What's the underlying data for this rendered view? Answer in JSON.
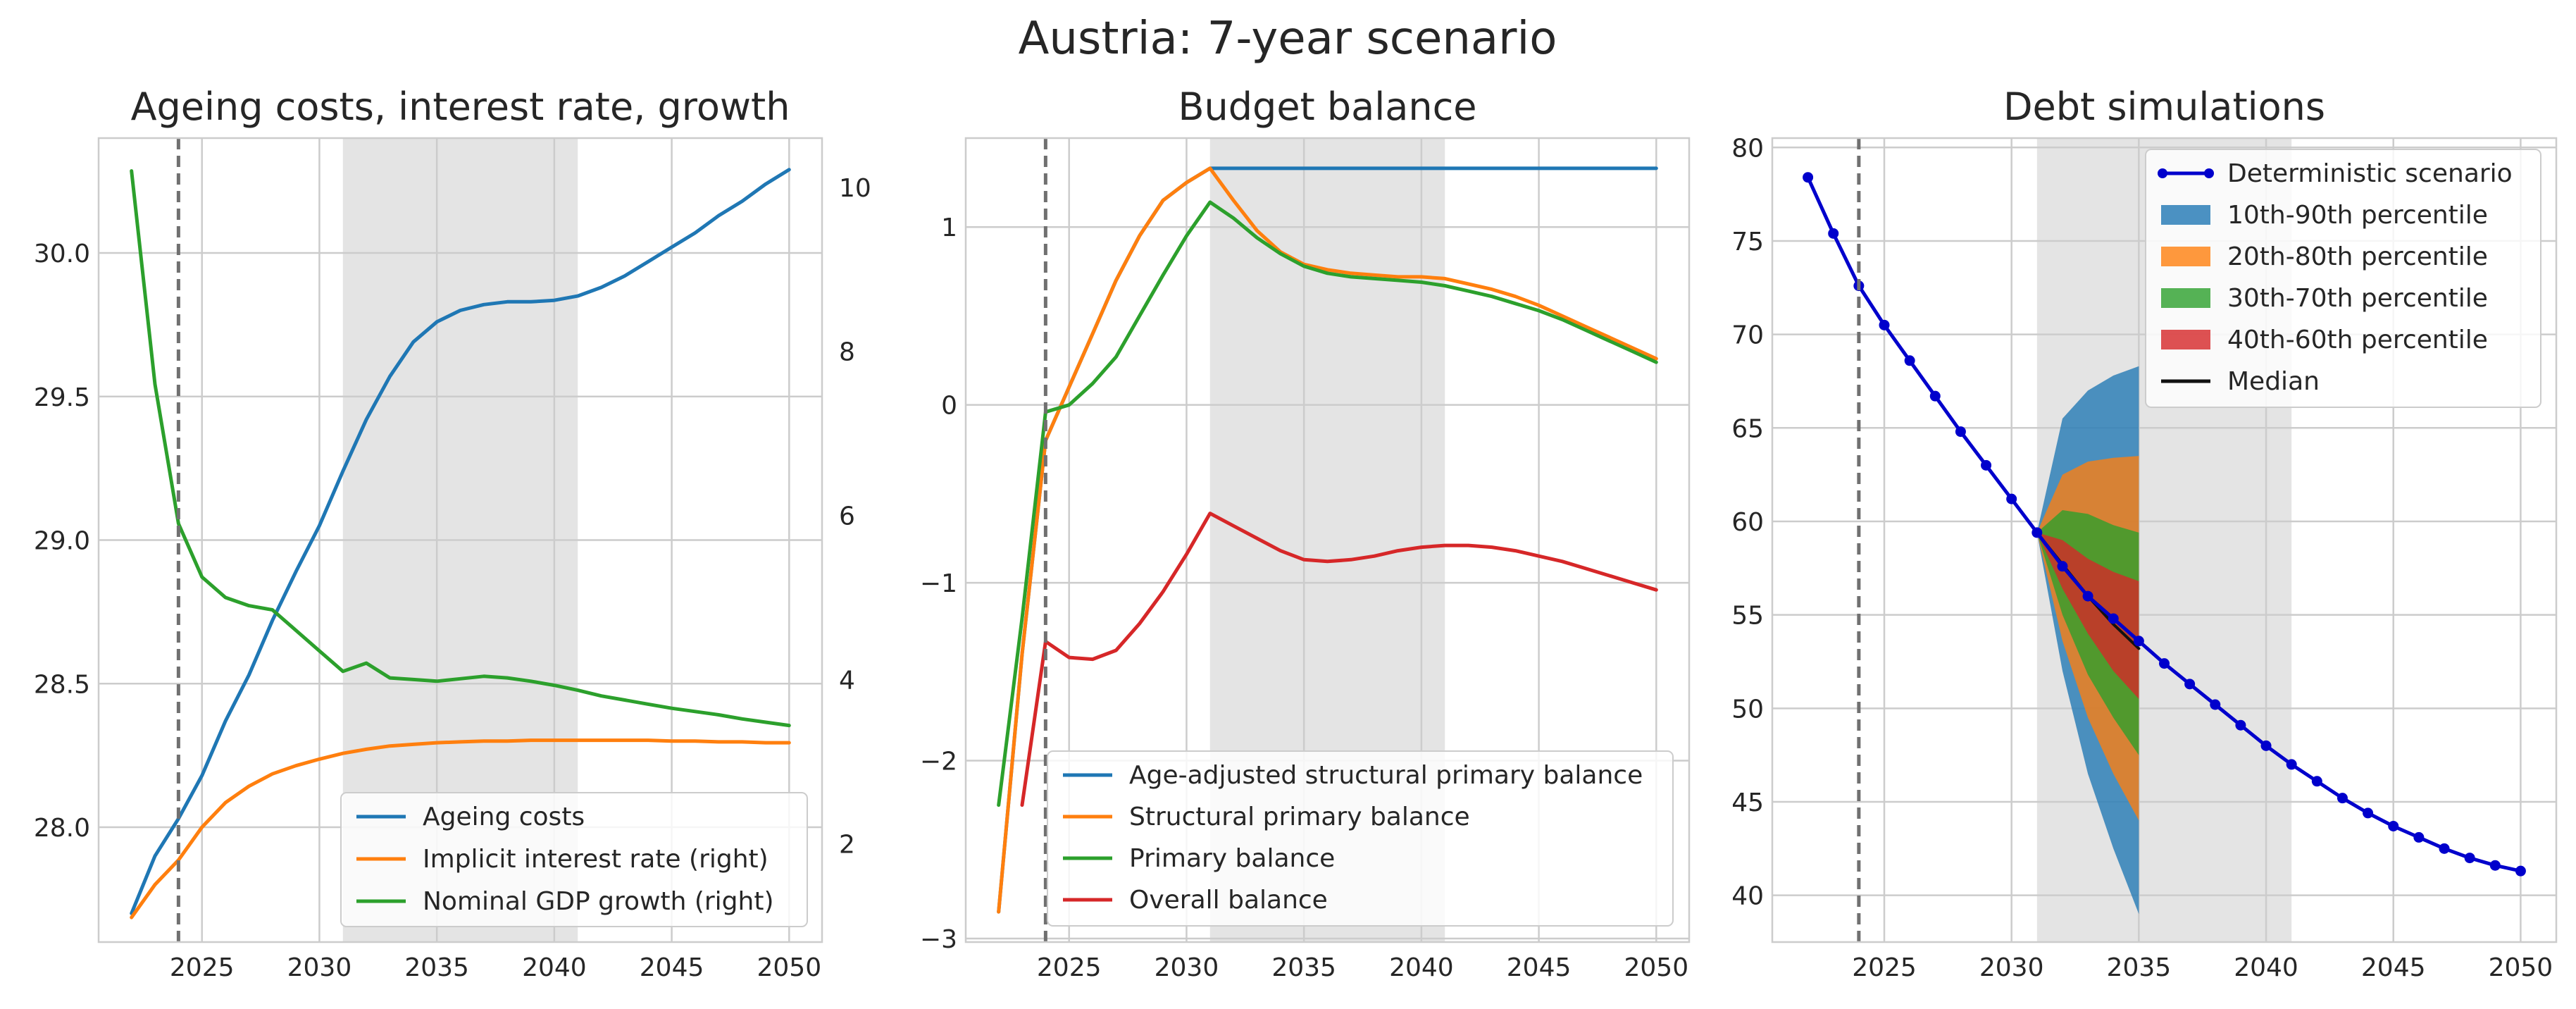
{
  "suptitle": "Austria: 7-year scenario",
  "colors": {
    "blue": "#1f77b4",
    "orange": "#ff7f0e",
    "green": "#2ca02c",
    "red": "#d62728",
    "grid": "#cccccc",
    "shade": "#e4e4e4",
    "vline": "#707070",
    "frame": "#cccccc",
    "deterministic": "#0000cc",
    "median": "#111111"
  },
  "chart_data": [
    {
      "type": "line",
      "title": "Ageing costs, interest rate, growth",
      "xlabel": "",
      "ylabel": "",
      "xlim": [
        2020.6,
        2051.4
      ],
      "ylim": [
        27.6,
        30.4
      ],
      "y2lim": [
        0.8,
        10.6
      ],
      "xticks": [
        2025,
        2030,
        2035,
        2040,
        2045,
        2050
      ],
      "yticks": [
        28.0,
        28.5,
        29.0,
        29.5,
        30.0
      ],
      "ytick_labels": [
        "28.0",
        "28.5",
        "29.0",
        "29.5",
        "30.0"
      ],
      "y2ticks": [
        2,
        4,
        6,
        8,
        10
      ],
      "y2tick_labels": [
        "2",
        "4",
        "6",
        "8",
        "10"
      ],
      "shaded_range": [
        2031,
        2041
      ],
      "vline": 2024,
      "legend_position": "lower right",
      "grid": true,
      "x": [
        2022,
        2023,
        2024,
        2025,
        2026,
        2027,
        2028,
        2029,
        2030,
        2031,
        2032,
        2033,
        2034,
        2035,
        2036,
        2037,
        2038,
        2039,
        2040,
        2041,
        2042,
        2043,
        2044,
        2045,
        2046,
        2047,
        2048,
        2049,
        2050
      ],
      "series": [
        {
          "name": "Ageing costs",
          "axis": "left",
          "color": "blue",
          "values": [
            27.7,
            27.9,
            28.03,
            28.18,
            28.37,
            28.53,
            28.72,
            28.89,
            29.05,
            29.24,
            29.42,
            29.57,
            29.69,
            29.76,
            29.8,
            29.82,
            29.83,
            29.83,
            29.835,
            29.85,
            29.88,
            29.92,
            29.97,
            30.02,
            30.07,
            30.13,
            30.18,
            30.24,
            30.29
          ]
        },
        {
          "name": "Implicit interest rate (right)",
          "axis": "right",
          "color": "orange",
          "values": [
            1.1,
            1.5,
            1.8,
            2.2,
            2.5,
            2.7,
            2.85,
            2.95,
            3.03,
            3.1,
            3.15,
            3.19,
            3.21,
            3.23,
            3.24,
            3.25,
            3.25,
            3.26,
            3.26,
            3.26,
            3.26,
            3.26,
            3.26,
            3.25,
            3.25,
            3.24,
            3.24,
            3.23,
            3.23
          ]
        },
        {
          "name": "Nominal GDP growth (right)",
          "axis": "right",
          "color": "green",
          "values": [
            10.2,
            7.6,
            5.9,
            5.25,
            5.0,
            4.9,
            4.85,
            4.6,
            4.35,
            4.1,
            4.2,
            4.02,
            4.0,
            3.98,
            4.01,
            4.04,
            4.02,
            3.98,
            3.93,
            3.87,
            3.8,
            3.75,
            3.7,
            3.65,
            3.61,
            3.57,
            3.52,
            3.48,
            3.44
          ]
        }
      ]
    },
    {
      "type": "line",
      "title": "Budget balance",
      "xlabel": "",
      "ylabel": "",
      "xlim": [
        2020.6,
        2051.4
      ],
      "ylim": [
        -3.02,
        1.5
      ],
      "xticks": [
        2025,
        2030,
        2035,
        2040,
        2045,
        2050
      ],
      "yticks": [
        -3,
        -2,
        -1,
        0,
        1
      ],
      "ytick_labels": [
        "−3",
        "−2",
        "−1",
        "0",
        "1"
      ],
      "shaded_range": [
        2031,
        2041
      ],
      "vline": 2024,
      "legend_position": "lower right",
      "grid": true,
      "series": [
        {
          "name": "Age-adjusted structural primary balance",
          "color": "blue",
          "x": [
            2022,
            2023,
            2024,
            2025,
            2026,
            2027,
            2028,
            2029,
            2030,
            2031,
            2035,
            2040,
            2045,
            2050
          ],
          "values": [
            -2.85,
            -1.4,
            -0.2,
            0.1,
            0.4,
            0.7,
            0.95,
            1.15,
            1.25,
            1.33,
            1.33,
            1.33,
            1.33,
            1.33
          ]
        },
        {
          "name": "Structural primary balance",
          "color": "orange",
          "x": [
            2022,
            2023,
            2024,
            2025,
            2026,
            2027,
            2028,
            2029,
            2030,
            2031,
            2032,
            2033,
            2034,
            2035,
            2036,
            2037,
            2038,
            2039,
            2040,
            2041,
            2042,
            2043,
            2044,
            2045,
            2046,
            2047,
            2048,
            2049,
            2050
          ],
          "values": [
            -2.85,
            -1.4,
            -0.2,
            0.1,
            0.4,
            0.7,
            0.95,
            1.15,
            1.25,
            1.33,
            1.15,
            0.98,
            0.86,
            0.79,
            0.76,
            0.74,
            0.73,
            0.72,
            0.72,
            0.71,
            0.68,
            0.65,
            0.61,
            0.56,
            0.5,
            0.44,
            0.38,
            0.32,
            0.26
          ]
        },
        {
          "name": "Primary balance",
          "color": "green",
          "x": [
            2022,
            2023,
            2024,
            2025,
            2026,
            2027,
            2028,
            2029,
            2030,
            2031,
            2032,
            2033,
            2034,
            2035,
            2036,
            2037,
            2038,
            2039,
            2040,
            2041,
            2042,
            2043,
            2044,
            2045,
            2046,
            2047,
            2048,
            2049,
            2050
          ],
          "values": [
            -2.25,
            -1.2,
            -0.04,
            0.0,
            0.12,
            0.27,
            0.5,
            0.73,
            0.95,
            1.14,
            1.05,
            0.94,
            0.85,
            0.78,
            0.74,
            0.72,
            0.71,
            0.7,
            0.69,
            0.67,
            0.64,
            0.61,
            0.57,
            0.53,
            0.48,
            0.42,
            0.36,
            0.3,
            0.24
          ]
        },
        {
          "name": "Overall balance",
          "color": "red",
          "x": [
            2023,
            2024,
            2025,
            2026,
            2027,
            2028,
            2029,
            2030,
            2031,
            2032,
            2033,
            2034,
            2035,
            2036,
            2037,
            2038,
            2039,
            2040,
            2041,
            2042,
            2043,
            2044,
            2045,
            2046,
            2047,
            2048,
            2049,
            2050
          ],
          "values": [
            -2.25,
            -1.33,
            -1.42,
            -1.43,
            -1.38,
            -1.23,
            -1.05,
            -0.84,
            -0.61,
            -0.68,
            -0.75,
            -0.82,
            -0.87,
            -0.88,
            -0.87,
            -0.85,
            -0.82,
            -0.8,
            -0.79,
            -0.79,
            -0.8,
            -0.82,
            -0.85,
            -0.88,
            -0.92,
            -0.96,
            -1.0,
            -1.04
          ]
        }
      ]
    },
    {
      "type": "area",
      "title": "Debt simulations",
      "xlabel": "",
      "ylabel": "",
      "xlim": [
        2020.6,
        2051.4
      ],
      "ylim": [
        37.5,
        80.5
      ],
      "xticks": [
        2025,
        2030,
        2035,
        2040,
        2045,
        2050
      ],
      "yticks": [
        40,
        45,
        50,
        55,
        60,
        65,
        70,
        75,
        80
      ],
      "ytick_labels": [
        "40",
        "45",
        "50",
        "55",
        "60",
        "65",
        "70",
        "75",
        "80"
      ],
      "shaded_range": [
        2031,
        2041
      ],
      "vline": 2024,
      "legend_position": "upper right",
      "grid": true,
      "deterministic": {
        "name": "Deterministic scenario",
        "color": "deterministic",
        "x": [
          2022,
          2023,
          2024,
          2025,
          2026,
          2027,
          2028,
          2029,
          2030,
          2031,
          2032,
          2033,
          2034,
          2035,
          2036,
          2037,
          2038,
          2039,
          2040,
          2041,
          2042,
          2043,
          2044,
          2045,
          2046,
          2047,
          2048,
          2049,
          2050
        ],
        "values": [
          78.4,
          75.4,
          72.6,
          70.5,
          68.6,
          66.7,
          64.8,
          63.0,
          61.2,
          59.4,
          57.6,
          56.0,
          54.8,
          53.6,
          52.4,
          51.3,
          50.2,
          49.1,
          48.0,
          47.0,
          46.1,
          45.2,
          44.4,
          43.7,
          43.1,
          42.5,
          42.0,
          41.6,
          41.3
        ]
      },
      "fan_x": [
        2031,
        2032,
        2033,
        2034,
        2035
      ],
      "bands": [
        {
          "name": "10th-90th percentile",
          "color": "blue",
          "lower": [
            59.4,
            52.0,
            46.5,
            42.5,
            39.0
          ],
          "upper": [
            59.4,
            65.5,
            67.0,
            67.8,
            68.3
          ]
        },
        {
          "name": "20th-80th percentile",
          "color": "orange",
          "lower": [
            59.4,
            53.6,
            49.5,
            46.5,
            44.0
          ],
          "upper": [
            59.4,
            62.5,
            63.2,
            63.4,
            63.5
          ]
        },
        {
          "name": "30th-70th percentile",
          "color": "green",
          "lower": [
            59.4,
            55.0,
            51.8,
            49.5,
            47.5
          ],
          "upper": [
            59.4,
            60.6,
            60.4,
            59.8,
            59.4
          ]
        },
        {
          "name": "40th-60th percentile",
          "color": "red",
          "lower": [
            59.4,
            56.4,
            54.0,
            52.0,
            50.5
          ],
          "upper": [
            59.4,
            59.0,
            58.0,
            57.3,
            56.8
          ]
        }
      ],
      "median": {
        "name": "Median",
        "color": "median",
        "values": [
          59.4,
          57.7,
          56.0,
          54.5,
          53.2
        ]
      }
    }
  ]
}
